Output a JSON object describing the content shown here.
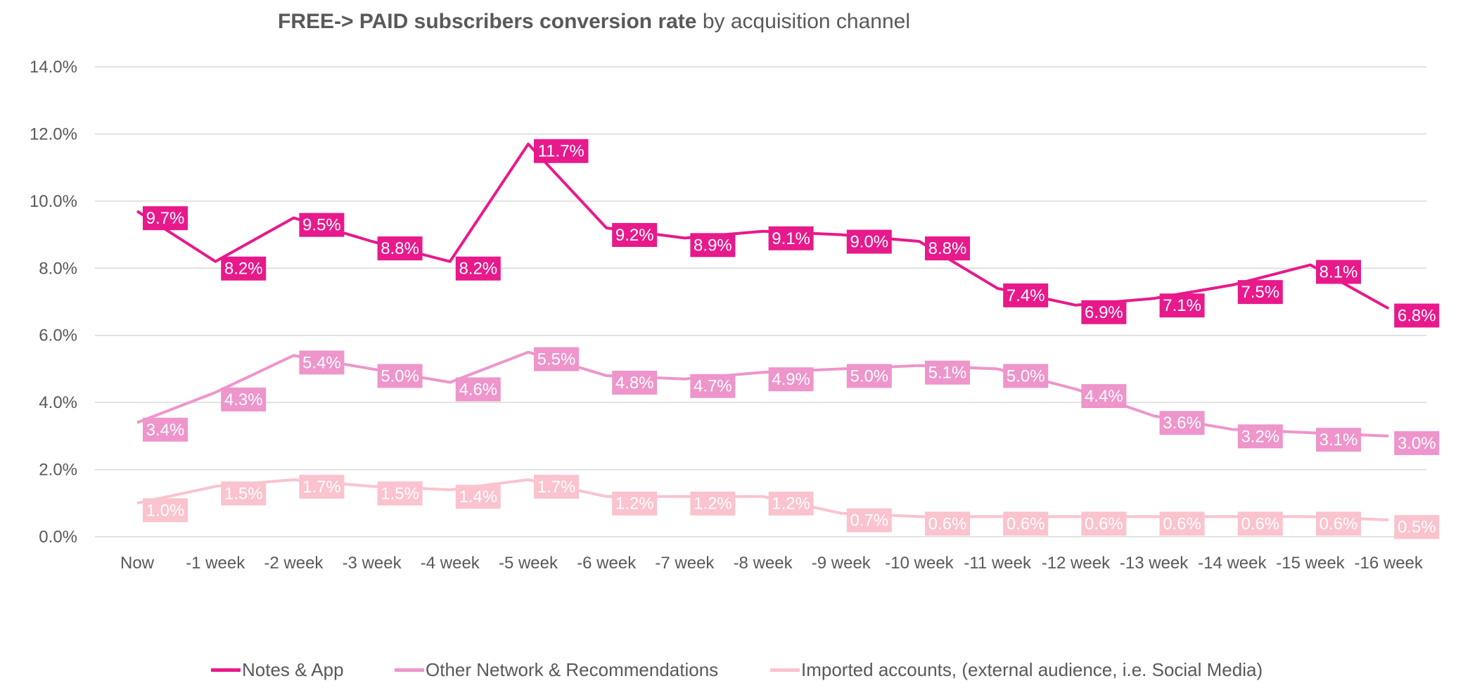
{
  "title": {
    "bold": "FREE-> PAID subscribers conversion rate",
    "rest": " by acquisition channel"
  },
  "chart_data": {
    "type": "line",
    "title": "FREE-> PAID subscribers conversion rate by acquisition channel",
    "xlabel": "",
    "ylabel": "",
    "ylim": [
      0,
      14
    ],
    "y_ticks": [
      "0.0%",
      "2.0%",
      "4.0%",
      "6.0%",
      "8.0%",
      "10.0%",
      "12.0%",
      "14.0%"
    ],
    "grid": true,
    "legend_position": "bottom",
    "categories": [
      "Now",
      "-1 week",
      "-2 week",
      "-3 week",
      "-4 week",
      "-5 week",
      "-6 week",
      "-7 week",
      "-8 week",
      "-9 week",
      "-10 week",
      "-11 week",
      "-12 week",
      "-13 week",
      "-14 week",
      "-15 week",
      "-16 week"
    ],
    "series": [
      {
        "name": "Notes & App",
        "color": "#E8198B",
        "values": [
          9.7,
          8.2,
          9.5,
          8.8,
          8.2,
          11.7,
          9.2,
          8.9,
          9.1,
          9.0,
          8.8,
          7.4,
          6.9,
          7.1,
          7.5,
          8.1,
          6.8
        ],
        "labels": [
          "9.7%",
          "8.2%",
          "9.5%",
          "8.8%",
          "8.2%",
          "11.7%",
          "9.2%",
          "8.9%",
          "9.1%",
          "9.0%",
          "8.8%",
          "7.4%",
          "6.9%",
          "7.1%",
          "7.5%",
          "8.1%",
          "6.8%"
        ]
      },
      {
        "name": "Other Network & Recommendations",
        "color": "#EE95CB",
        "values": [
          3.4,
          4.3,
          5.4,
          5.0,
          4.6,
          5.5,
          4.8,
          4.7,
          4.9,
          5.0,
          5.1,
          5.0,
          4.4,
          3.6,
          3.2,
          3.1,
          3.0
        ],
        "labels": [
          "3.4%",
          "4.3%",
          "5.4%",
          "5.0%",
          "4.6%",
          "5.5%",
          "4.8%",
          "4.7%",
          "4.9%",
          "5.0%",
          "5.1%",
          "5.0%",
          "4.4%",
          "3.6%",
          "3.2%",
          "3.1%",
          "3.0%"
        ]
      },
      {
        "name": "Imported accounts, (external audience, i.e. Social Media)",
        "color": "#FAC3CE",
        "values": [
          1.0,
          1.5,
          1.7,
          1.5,
          1.4,
          1.7,
          1.2,
          1.2,
          1.2,
          0.7,
          0.6,
          0.6,
          0.6,
          0.6,
          0.6,
          0.6,
          0.5
        ],
        "labels": [
          "1.0%",
          "1.5%",
          "1.7%",
          "1.5%",
          "1.4%",
          "1.7%",
          "1.2%",
          "1.2%",
          "1.2%",
          "0.7%",
          "0.6%",
          "0.6%",
          "0.6%",
          "0.6%",
          "0.6%",
          "0.6%",
          "0.5%"
        ]
      }
    ]
  }
}
